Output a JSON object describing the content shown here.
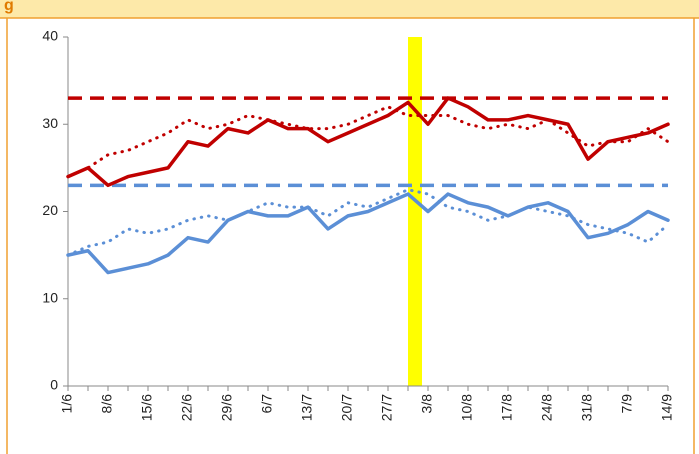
{
  "chart_data": {
    "type": "line",
    "title": "g",
    "categories": [
      "1/6",
      null,
      "8/6",
      null,
      "15/6",
      null,
      "22/6",
      null,
      "29/6",
      null,
      "6/7",
      null,
      "13/7",
      null,
      "20/7",
      null,
      "27/7",
      null,
      "3/8",
      null,
      "10/8",
      null,
      "17/8",
      null,
      "24/8",
      null,
      "31/8",
      null,
      "7/9",
      null,
      "14/9"
    ],
    "series": [
      {
        "color": "#c00000",
        "style": "solid",
        "values": [
          24,
          25,
          23,
          24,
          24.5,
          25,
          28,
          27.5,
          29.5,
          29,
          30.5,
          29.5,
          29.5,
          28,
          29,
          30,
          31,
          32.5,
          30,
          33,
          32,
          30.5,
          30.5,
          31,
          30.5,
          30,
          26,
          28,
          28.5,
          29,
          30
        ]
      },
      {
        "color": "#c00000",
        "style": "dotted",
        "values": [
          24,
          25,
          26.5,
          27,
          28,
          29,
          30.5,
          29.5,
          30,
          31,
          30.5,
          30,
          29.5,
          29.5,
          30,
          31,
          32,
          31,
          31,
          31,
          30,
          29.5,
          30,
          29.5,
          30.5,
          29,
          27.5,
          28,
          28,
          29.5,
          28
        ]
      },
      {
        "color": "#5b8fd6",
        "style": "solid",
        "values": [
          15,
          15.5,
          13,
          13.5,
          14,
          15,
          17,
          16.5,
          19,
          20,
          19.5,
          19.5,
          20.5,
          18,
          19.5,
          20,
          21,
          22,
          20,
          22,
          21,
          20.5,
          19.5,
          20.5,
          21,
          20,
          17,
          17.5,
          18.5,
          20,
          19
        ]
      },
      {
        "color": "#5b8fd6",
        "style": "dotted",
        "values": [
          15,
          16,
          16.5,
          18,
          17.5,
          18,
          19,
          19.5,
          19,
          20,
          21,
          20.5,
          20.5,
          19.5,
          21,
          20.5,
          21.5,
          22.5,
          22,
          20.5,
          20,
          19,
          19.5,
          20.5,
          20,
          19.5,
          18.5,
          18,
          17.5,
          16.5,
          18.5
        ]
      }
    ],
    "reference_lines": [
      {
        "value": 33,
        "color": "#c00000"
      },
      {
        "value": 23,
        "color": "#5b8fd6"
      }
    ],
    "highlight": {
      "at": 17.35,
      "color": "#ffff00"
    },
    "ylim": [
      0,
      40
    ],
    "yticks": [
      0,
      10,
      20,
      30,
      40
    ]
  }
}
